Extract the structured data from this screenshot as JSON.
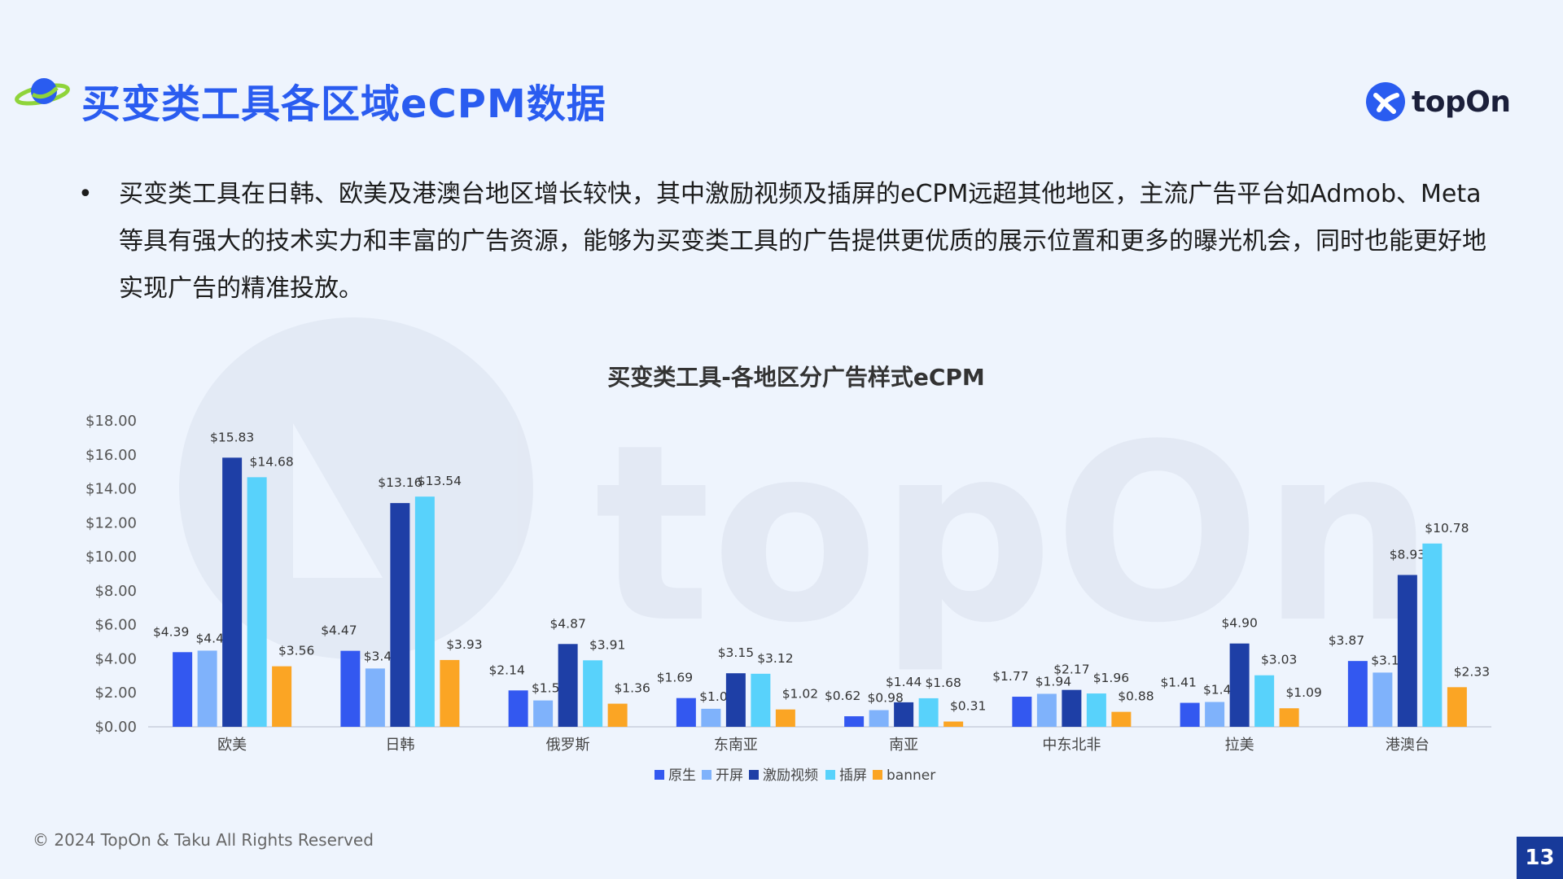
{
  "page": {
    "title": "买变类工具各区域eCPM数据",
    "brand": "topOn",
    "summary": "买变类工具在日韩、欧美及港澳台地区增长较快，其中激励视频及插屏的eCPM远超其他地区，主流广告平台如Admob、Meta等具有强大的技术实力和丰富的广告资源，能够为买变类工具的广告提供更优质的展示位置和更多的曝光机会，同时也能更好地实现广告的精准投放。",
    "footer": "© 2024 TopOn & Taku All Rights Reserved",
    "page_number": "13",
    "watermark_text": "topOn"
  },
  "colors": {
    "accent": "#2a5cf0",
    "page_number_bg": "#173a9a"
  },
  "icons": {
    "header": "planet-icon",
    "brand": "topon-logo-icon"
  },
  "chart_data": {
    "type": "bar",
    "title": "买变类工具-各地区分广告样式eCPM",
    "categories": [
      "欧美",
      "日韩",
      "俄罗斯",
      "东南亚",
      "南亚",
      "中东北非",
      "拉美",
      "港澳台"
    ],
    "series": [
      {
        "name": "原生",
        "color": "#3358f0",
        "values": [
          4.39,
          4.47,
          2.14,
          1.69,
          0.62,
          1.77,
          1.41,
          3.87
        ]
      },
      {
        "name": "开屏",
        "color": "#7fb2fb",
        "values": [
          4.48,
          3.43,
          1.55,
          1.06,
          0.98,
          1.94,
          1.46,
          3.19
        ]
      },
      {
        "name": "激励视频",
        "color": "#1e3fa6",
        "values": [
          15.83,
          13.16,
          4.87,
          3.15,
          1.44,
          2.17,
          4.9,
          8.93
        ]
      },
      {
        "name": "插屏",
        "color": "#58d2fb",
        "values": [
          14.68,
          13.54,
          3.91,
          3.12,
          1.68,
          1.96,
          3.03,
          10.78
        ]
      },
      {
        "name": "banner",
        "color": "#fba524",
        "values": [
          3.56,
          3.93,
          1.36,
          1.02,
          0.31,
          0.88,
          1.09,
          2.33
        ]
      }
    ],
    "ylim": [
      0,
      18
    ],
    "yticks": [
      0,
      2,
      4,
      6,
      8,
      10,
      12,
      14,
      16,
      18
    ],
    "ytick_labels": [
      "$0.00",
      "$2.00",
      "$4.00",
      "$6.00",
      "$8.00",
      "$10.00",
      "$12.00",
      "$14.00",
      "$16.00",
      "$18.00"
    ],
    "value_prefix": "$",
    "grid": false,
    "legend_position": "bottom"
  }
}
